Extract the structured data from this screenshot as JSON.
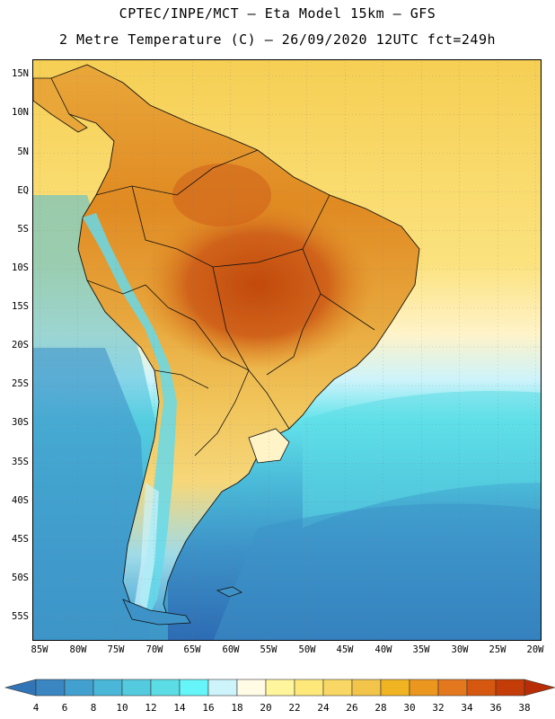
{
  "header": {
    "line1": "CPTEC/INPE/MCT —  Eta Model 15km — GFS",
    "line2": "2 Metre Temperature (C) — 26/09/2020 12UTC fct=249h"
  },
  "lat_labels": [
    "15N",
    "10N",
    "5N",
    "EQ",
    "5S",
    "10S",
    "15S",
    "20S",
    "25S",
    "30S",
    "35S",
    "40S",
    "45S",
    "50S",
    "55S"
  ],
  "lon_labels": [
    "85W",
    "80W",
    "75W",
    "70W",
    "65W",
    "60W",
    "55W",
    "50W",
    "45W",
    "40W",
    "35W",
    "30W",
    "25W",
    "20W"
  ],
  "colorbar": {
    "ticks": [
      "4",
      "6",
      "8",
      "10",
      "12",
      "14",
      "16",
      "18",
      "20",
      "22",
      "24",
      "26",
      "28",
      "30",
      "32",
      "34",
      "36",
      "38"
    ],
    "colors": [
      "#3275b6",
      "#3a86c2",
      "#42a0cf",
      "#4ab7d8",
      "#54cadf",
      "#5cdde6",
      "#66f5f8",
      "#cdf3fb",
      "#fffbe5",
      "#fff59c",
      "#fee87a",
      "#f9d764",
      "#f2c44a",
      "#f0b322",
      "#eb961e",
      "#e4781e",
      "#d6570f",
      "#c43c07",
      "#b82d05"
    ]
  },
  "colors": {
    "ocean_north": "#f6cf54",
    "ocean_south": "#2d6bb3",
    "hot_core": "#c9560f"
  }
}
